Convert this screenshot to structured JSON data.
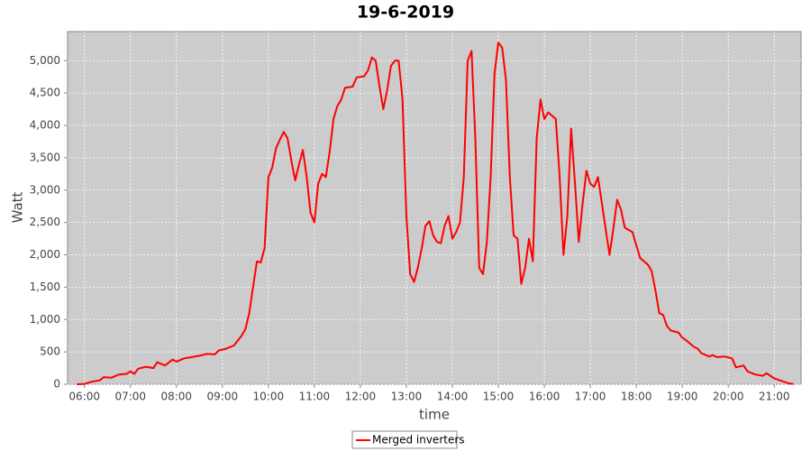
{
  "chart_data": {
    "type": "line",
    "title": "19-6-2019",
    "x_label": "time",
    "y_label": "Watt",
    "x": [
      "05:50",
      "06:00",
      "06:10",
      "06:20",
      "06:25",
      "06:35",
      "06:45",
      "06:55",
      "07:00",
      "07:05",
      "07:10",
      "07:20",
      "07:30",
      "07:35",
      "07:45",
      "07:55",
      "08:00",
      "08:10",
      "08:20",
      "08:30",
      "08:40",
      "08:50",
      "08:55",
      "09:05",
      "09:15",
      "09:25",
      "09:30",
      "09:35",
      "09:40",
      "09:45",
      "09:50",
      "09:55",
      "10:00",
      "10:05",
      "10:10",
      "10:15",
      "10:20",
      "10:25",
      "10:30",
      "10:35",
      "10:40",
      "10:45",
      "10:50",
      "10:55",
      "11:00",
      "11:05",
      "11:10",
      "11:15",
      "11:20",
      "11:25",
      "11:30",
      "11:35",
      "11:40",
      "11:50",
      "11:55",
      "12:05",
      "12:10",
      "12:15",
      "12:20",
      "12:25",
      "12:30",
      "12:35",
      "12:40",
      "12:45",
      "12:50",
      "12:55",
      "13:00",
      "13:05",
      "13:10",
      "13:15",
      "13:20",
      "13:25",
      "13:30",
      "13:35",
      "13:40",
      "13:45",
      "13:50",
      "13:55",
      "14:00",
      "14:05",
      "14:10",
      "14:15",
      "14:20",
      "14:25",
      "14:30",
      "14:35",
      "14:40",
      "14:45",
      "14:50",
      "14:55",
      "15:00",
      "15:05",
      "15:10",
      "15:15",
      "15:20",
      "15:25",
      "15:30",
      "15:35",
      "15:40",
      "15:45",
      "15:50",
      "15:55",
      "16:00",
      "16:05",
      "16:10",
      "16:15",
      "16:20",
      "16:25",
      "16:30",
      "16:35",
      "16:40",
      "16:45",
      "16:50",
      "16:55",
      "17:00",
      "17:05",
      "17:10",
      "17:15",
      "17:20",
      "17:25",
      "17:30",
      "17:35",
      "17:40",
      "17:45",
      "17:55",
      "18:00",
      "18:05",
      "18:15",
      "18:20",
      "18:25",
      "18:30",
      "18:35",
      "18:40",
      "18:45",
      "18:55",
      "19:00",
      "19:05",
      "19:15",
      "19:20",
      "19:25",
      "19:35",
      "19:40",
      "19:45",
      "19:55",
      "20:05",
      "20:10",
      "20:20",
      "20:25",
      "20:35",
      "20:45",
      "20:50",
      "21:00",
      "21:10",
      "21:20",
      "21:25"
    ],
    "series": [
      {
        "name": "Merged inverters",
        "color": "#ff0000",
        "values": [
          0,
          5,
          40,
          60,
          110,
          100,
          150,
          160,
          200,
          160,
          240,
          270,
          250,
          340,
          290,
          380,
          350,
          400,
          420,
          440,
          470,
          460,
          520,
          550,
          600,
          750,
          850,
          1100,
          1500,
          1900,
          1880,
          2100,
          3200,
          3350,
          3650,
          3780,
          3900,
          3800,
          3450,
          3150,
          3400,
          3620,
          3200,
          2650,
          2500,
          3100,
          3250,
          3200,
          3600,
          4100,
          4300,
          4400,
          4580,
          4600,
          4740,
          4760,
          4850,
          5050,
          5000,
          4600,
          4250,
          4550,
          4920,
          5000,
          5000,
          4400,
          2600,
          1700,
          1580,
          1800,
          2100,
          2450,
          2520,
          2300,
          2200,
          2180,
          2450,
          2600,
          2250,
          2350,
          2500,
          3200,
          5000,
          5150,
          3800,
          1800,
          1700,
          2200,
          3200,
          4800,
          5280,
          5200,
          4700,
          3200,
          2300,
          2250,
          1550,
          1800,
          2250,
          1900,
          3800,
          4400,
          4100,
          4200,
          4150,
          4100,
          3200,
          2000,
          2600,
          3950,
          3100,
          2200,
          2800,
          3300,
          3100,
          3050,
          3200,
          2800,
          2400,
          2000,
          2400,
          2850,
          2700,
          2420,
          2350,
          2150,
          1950,
          1850,
          1750,
          1450,
          1100,
          1070,
          900,
          830,
          800,
          720,
          680,
          580,
          550,
          480,
          430,
          450,
          420,
          430,
          400,
          260,
          290,
          200,
          150,
          130,
          170,
          90,
          50,
          10,
          5
        ]
      }
    ],
    "xlim": [
      "05:38",
      "21:35"
    ],
    "xticks": [
      "06:00",
      "07:00",
      "08:00",
      "09:00",
      "10:00",
      "11:00",
      "12:00",
      "13:00",
      "14:00",
      "15:00",
      "16:00",
      "17:00",
      "18:00",
      "19:00",
      "20:00",
      "21:00"
    ],
    "ylim": [
      0,
      5450
    ],
    "yticks": [
      0,
      500,
      {
        "value": 1000,
        "label": "1,000"
      },
      {
        "value": 1500,
        "label": "1,500"
      },
      {
        "value": 2000,
        "label": "2,000"
      },
      {
        "value": 2500,
        "label": "2,500"
      },
      {
        "value": 3000,
        "label": "3,000"
      },
      {
        "value": 3500,
        "label": "3,500"
      },
      {
        "value": 4000,
        "label": "4,000"
      },
      {
        "value": 4500,
        "label": "4,500"
      },
      {
        "value": 5000,
        "label": "5,000"
      }
    ],
    "grid": true,
    "legend": "bottom"
  }
}
